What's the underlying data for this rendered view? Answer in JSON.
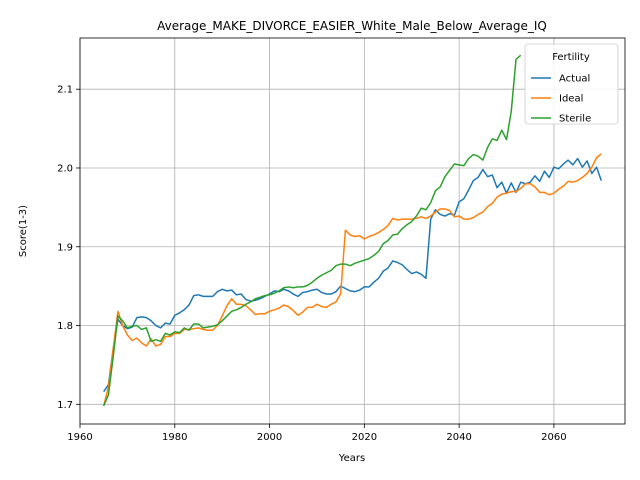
{
  "chart_data": {
    "type": "line",
    "title": "Average_MAKE_DIVORCE_EASIER_White_Male_Below_Average_IQ",
    "xlabel": "Years",
    "ylabel": "Score(1-3)",
    "xlim": [
      1960,
      2075
    ],
    "ylim": [
      1.675,
      2.165
    ],
    "xticks": [
      1960,
      1980,
      2000,
      2020,
      2040,
      2060
    ],
    "yticks": [
      1.7,
      1.8,
      1.9,
      2.0,
      2.1
    ],
    "ytick_labels": [
      "1.7",
      "1.8",
      "1.9",
      "2.0",
      "2.1"
    ],
    "grid": true,
    "legend": {
      "title": "Fertility",
      "position": "top-right"
    },
    "series": [
      {
        "name": "Actual",
        "color": "#1f77b4",
        "points": [
          [
            1965,
            1.716
          ],
          [
            1966,
            1.725
          ],
          [
            1967,
            1.77
          ],
          [
            1968,
            1.808
          ],
          [
            1969,
            1.8
          ],
          [
            1970,
            1.796
          ],
          [
            1971,
            1.798
          ],
          [
            1972,
            1.81
          ],
          [
            1973,
            1.811
          ],
          [
            1974,
            1.81
          ],
          [
            1975,
            1.806
          ],
          [
            1976,
            1.8
          ],
          [
            1977,
            1.797
          ],
          [
            1978,
            1.803
          ],
          [
            1979,
            1.802
          ],
          [
            1980,
            1.813
          ],
          [
            1981,
            1.816
          ],
          [
            1982,
            1.82
          ],
          [
            1983,
            1.826
          ],
          [
            1984,
            1.838
          ],
          [
            1985,
            1.839
          ],
          [
            1986,
            1.837
          ],
          [
            1987,
            1.837
          ],
          [
            1988,
            1.837
          ],
          [
            1989,
            1.843
          ],
          [
            1990,
            1.846
          ],
          [
            1991,
            1.844
          ],
          [
            1992,
            1.845
          ],
          [
            1993,
            1.839
          ],
          [
            1994,
            1.84
          ],
          [
            1995,
            1.833
          ],
          [
            1996,
            1.831
          ],
          [
            1997,
            1.832
          ],
          [
            1998,
            1.834
          ],
          [
            1999,
            1.837
          ],
          [
            2000,
            1.84
          ],
          [
            2001,
            1.844
          ],
          [
            2002,
            1.843
          ],
          [
            2003,
            1.846
          ],
          [
            2004,
            1.844
          ],
          [
            2005,
            1.84
          ],
          [
            2006,
            1.837
          ],
          [
            2007,
            1.842
          ],
          [
            2008,
            1.843
          ],
          [
            2009,
            1.845
          ],
          [
            2010,
            1.846
          ],
          [
            2011,
            1.842
          ],
          [
            2012,
            1.84
          ],
          [
            2013,
            1.84
          ],
          [
            2014,
            1.843
          ],
          [
            2015,
            1.85
          ],
          [
            2016,
            1.847
          ],
          [
            2017,
            1.844
          ],
          [
            2018,
            1.843
          ],
          [
            2019,
            1.845
          ],
          [
            2020,
            1.849
          ],
          [
            2021,
            1.849
          ],
          [
            2022,
            1.855
          ],
          [
            2023,
            1.86
          ],
          [
            2024,
            1.869
          ],
          [
            2025,
            1.873
          ],
          [
            2026,
            1.882
          ],
          [
            2027,
            1.88
          ],
          [
            2028,
            1.877
          ],
          [
            2029,
            1.871
          ],
          [
            2030,
            1.866
          ],
          [
            2031,
            1.868
          ],
          [
            2032,
            1.865
          ],
          [
            2033,
            1.86
          ],
          [
            2034,
            1.935
          ],
          [
            2035,
            1.947
          ],
          [
            2036,
            1.941
          ],
          [
            2037,
            1.939
          ],
          [
            2038,
            1.942
          ],
          [
            2039,
            1.94
          ],
          [
            2040,
            1.957
          ],
          [
            2041,
            1.961
          ],
          [
            2042,
            1.972
          ],
          [
            2043,
            1.984
          ],
          [
            2044,
            1.988
          ],
          [
            2045,
            1.998
          ],
          [
            2046,
            1.989
          ],
          [
            2047,
            1.991
          ],
          [
            2048,
            1.975
          ],
          [
            2049,
            1.982
          ],
          [
            2050,
            1.968
          ],
          [
            2051,
            1.981
          ],
          [
            2052,
            1.969
          ],
          [
            2053,
            1.982
          ],
          [
            2054,
            1.98
          ],
          [
            2055,
            1.982
          ],
          [
            2056,
            1.99
          ],
          [
            2057,
            1.983
          ],
          [
            2058,
            1.996
          ],
          [
            2059,
            1.988
          ],
          [
            2060,
            2.001
          ],
          [
            2061,
            1.999
          ],
          [
            2062,
            2.005
          ],
          [
            2063,
            2.01
          ],
          [
            2064,
            2.004
          ],
          [
            2065,
            2.012
          ],
          [
            2066,
            2.001
          ],
          [
            2067,
            2.009
          ],
          [
            2068,
            1.993
          ],
          [
            2069,
            2.001
          ],
          [
            2070,
            1.984
          ]
        ]
      },
      {
        "name": "Ideal",
        "color": "#ff7f0e",
        "points": [
          [
            1965,
            1.698
          ],
          [
            1966,
            1.722
          ],
          [
            1967,
            1.77
          ],
          [
            1968,
            1.818
          ],
          [
            1969,
            1.8
          ],
          [
            1970,
            1.788
          ],
          [
            1971,
            1.781
          ],
          [
            1972,
            1.784
          ],
          [
            1973,
            1.778
          ],
          [
            1974,
            1.774
          ],
          [
            1975,
            1.783
          ],
          [
            1976,
            1.774
          ],
          [
            1977,
            1.776
          ],
          [
            1978,
            1.786
          ],
          [
            1979,
            1.786
          ],
          [
            1980,
            1.79
          ],
          [
            1981,
            1.79
          ],
          [
            1982,
            1.795
          ],
          [
            1983,
            1.795
          ],
          [
            1984,
            1.796
          ],
          [
            1985,
            1.797
          ],
          [
            1986,
            1.795
          ],
          [
            1987,
            1.794
          ],
          [
            1988,
            1.794
          ],
          [
            1989,
            1.8
          ],
          [
            1990,
            1.812
          ],
          [
            1991,
            1.825
          ],
          [
            1992,
            1.834
          ],
          [
            1993,
            1.827
          ],
          [
            1994,
            1.827
          ],
          [
            1995,
            1.825
          ],
          [
            1996,
            1.82
          ],
          [
            1997,
            1.814
          ],
          [
            1998,
            1.815
          ],
          [
            1999,
            1.815
          ],
          [
            2000,
            1.818
          ],
          [
            2001,
            1.82
          ],
          [
            2002,
            1.822
          ],
          [
            2003,
            1.826
          ],
          [
            2004,
            1.824
          ],
          [
            2005,
            1.819
          ],
          [
            2006,
            1.813
          ],
          [
            2007,
            1.817
          ],
          [
            2008,
            1.823
          ],
          [
            2009,
            1.823
          ],
          [
            2010,
            1.827
          ],
          [
            2011,
            1.824
          ],
          [
            2012,
            1.823
          ],
          [
            2013,
            1.827
          ],
          [
            2014,
            1.83
          ],
          [
            2015,
            1.84
          ],
          [
            2016,
            1.921
          ],
          [
            2017,
            1.915
          ],
          [
            2018,
            1.913
          ],
          [
            2019,
            1.914
          ],
          [
            2020,
            1.91
          ],
          [
            2021,
            1.913
          ],
          [
            2022,
            1.915
          ],
          [
            2023,
            1.918
          ],
          [
            2024,
            1.922
          ],
          [
            2025,
            1.927
          ],
          [
            2026,
            1.936
          ],
          [
            2027,
            1.934
          ],
          [
            2028,
            1.935
          ],
          [
            2029,
            1.935
          ],
          [
            2030,
            1.935
          ],
          [
            2031,
            1.936
          ],
          [
            2032,
            1.938
          ],
          [
            2033,
            1.936
          ],
          [
            2034,
            1.939
          ],
          [
            2035,
            1.944
          ],
          [
            2036,
            1.948
          ],
          [
            2037,
            1.948
          ],
          [
            2038,
            1.946
          ],
          [
            2039,
            1.938
          ],
          [
            2040,
            1.939
          ],
          [
            2041,
            1.935
          ],
          [
            2042,
            1.935
          ],
          [
            2043,
            1.937
          ],
          [
            2044,
            1.941
          ],
          [
            2045,
            1.944
          ],
          [
            2046,
            1.951
          ],
          [
            2047,
            1.955
          ],
          [
            2048,
            1.963
          ],
          [
            2049,
            1.967
          ],
          [
            2050,
            1.968
          ],
          [
            2051,
            1.97
          ],
          [
            2052,
            1.97
          ],
          [
            2053,
            1.974
          ],
          [
            2054,
            1.98
          ],
          [
            2055,
            1.98
          ],
          [
            2056,
            1.976
          ],
          [
            2057,
            1.969
          ],
          [
            2058,
            1.969
          ],
          [
            2059,
            1.966
          ],
          [
            2060,
            1.968
          ],
          [
            2061,
            1.973
          ],
          [
            2062,
            1.977
          ],
          [
            2063,
            1.983
          ],
          [
            2064,
            1.982
          ],
          [
            2065,
            1.984
          ],
          [
            2066,
            1.988
          ],
          [
            2067,
            1.993
          ],
          [
            2068,
            2.001
          ],
          [
            2069,
            2.013
          ],
          [
            2070,
            2.018
          ]
        ]
      },
      {
        "name": "Sterile",
        "color": "#2ca02c",
        "points": [
          [
            1965,
            1.698
          ],
          [
            1966,
            1.712
          ],
          [
            1967,
            1.76
          ],
          [
            1968,
            1.812
          ],
          [
            1969,
            1.806
          ],
          [
            1970,
            1.797
          ],
          [
            1971,
            1.799
          ],
          [
            1972,
            1.8
          ],
          [
            1973,
            1.795
          ],
          [
            1974,
            1.797
          ],
          [
            1975,
            1.78
          ],
          [
            1976,
            1.782
          ],
          [
            1977,
            1.78
          ],
          [
            1978,
            1.79
          ],
          [
            1979,
            1.788
          ],
          [
            1980,
            1.792
          ],
          [
            1981,
            1.791
          ],
          [
            1982,
            1.797
          ],
          [
            1983,
            1.794
          ],
          [
            1984,
            1.802
          ],
          [
            1985,
            1.802
          ],
          [
            1986,
            1.797
          ],
          [
            1987,
            1.798
          ],
          [
            1988,
            1.799
          ],
          [
            1989,
            1.801
          ],
          [
            1990,
            1.806
          ],
          [
            1991,
            1.812
          ],
          [
            1992,
            1.818
          ],
          [
            1993,
            1.82
          ],
          [
            1994,
            1.823
          ],
          [
            1995,
            1.827
          ],
          [
            1996,
            1.83
          ],
          [
            1997,
            1.834
          ],
          [
            1998,
            1.836
          ],
          [
            1999,
            1.838
          ],
          [
            2000,
            1.839
          ],
          [
            2001,
            1.841
          ],
          [
            2002,
            1.844
          ],
          [
            2003,
            1.848
          ],
          [
            2004,
            1.849
          ],
          [
            2005,
            1.848
          ],
          [
            2006,
            1.849
          ],
          [
            2007,
            1.849
          ],
          [
            2008,
            1.851
          ],
          [
            2009,
            1.855
          ],
          [
            2010,
            1.86
          ],
          [
            2011,
            1.864
          ],
          [
            2012,
            1.867
          ],
          [
            2013,
            1.87
          ],
          [
            2014,
            1.876
          ],
          [
            2015,
            1.878
          ],
          [
            2016,
            1.878
          ],
          [
            2017,
            1.876
          ],
          [
            2018,
            1.879
          ],
          [
            2019,
            1.881
          ],
          [
            2020,
            1.883
          ],
          [
            2021,
            1.885
          ],
          [
            2022,
            1.889
          ],
          [
            2023,
            1.894
          ],
          [
            2024,
            1.904
          ],
          [
            2025,
            1.908
          ],
          [
            2026,
            1.915
          ],
          [
            2027,
            1.916
          ],
          [
            2028,
            1.923
          ],
          [
            2029,
            1.928
          ],
          [
            2030,
            1.932
          ],
          [
            2031,
            1.939
          ],
          [
            2032,
            1.949
          ],
          [
            2033,
            1.947
          ],
          [
            2034,
            1.956
          ],
          [
            2035,
            1.971
          ],
          [
            2036,
            1.976
          ],
          [
            2037,
            1.989
          ],
          [
            2038,
            1.997
          ],
          [
            2039,
            2.005
          ],
          [
            2040,
            2.004
          ],
          [
            2041,
            2.003
          ],
          [
            2042,
            2.012
          ],
          [
            2043,
            2.017
          ],
          [
            2044,
            2.015
          ],
          [
            2045,
            2.01
          ],
          [
            2046,
            2.026
          ],
          [
            2047,
            2.037
          ],
          [
            2048,
            2.035
          ],
          [
            2049,
            2.048
          ],
          [
            2050,
            2.036
          ],
          [
            2051,
            2.072
          ],
          [
            2052,
            2.138
          ],
          [
            2053,
            2.143
          ]
        ]
      }
    ]
  }
}
